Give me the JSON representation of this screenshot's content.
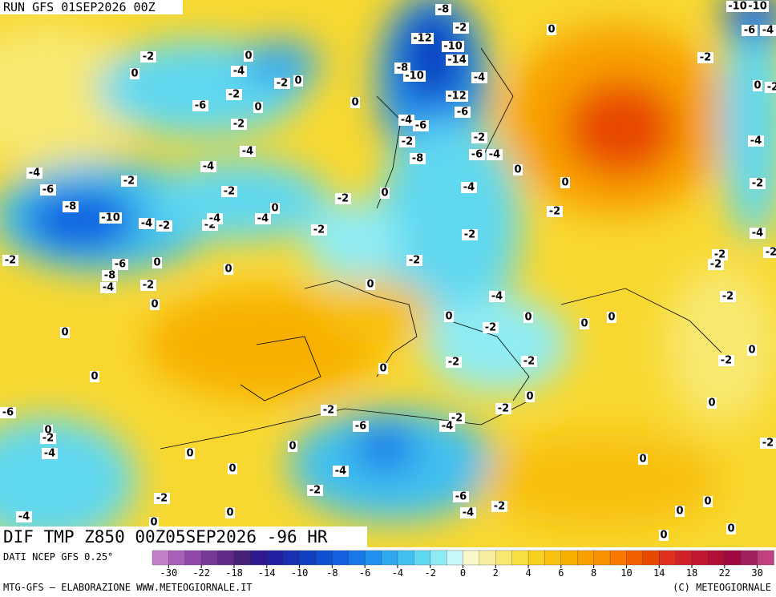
{
  "header": {
    "run": "RUN GFS 01SEP2026 00Z",
    "field": "DIF TMP Z850 00Z05SEP2026 -96 HR"
  },
  "footer": {
    "source": "DATI NCEP GFS 0.25°",
    "credit": "MTG-GFS — ELABORAZIONE WWW.METEOGIORNALE.IT",
    "copyright": "(C) METEOGIORNALE"
  },
  "colorbar": {
    "colors": [
      "#c080c8",
      "#a860b8",
      "#9048a8",
      "#783898",
      "#602888",
      "#482078",
      "#301890",
      "#2020a0",
      "#1830b0",
      "#1040c0",
      "#1050d0",
      "#1060e0",
      "#1878e8",
      "#2090f0",
      "#30a8f0",
      "#40c0f0",
      "#60d8f0",
      "#90ecf4",
      "#c8f8f8",
      "#f8f8c8",
      "#f8f0a0",
      "#f8e870",
      "#f8e040",
      "#f8d020",
      "#f8c010",
      "#f8b000",
      "#f8a000",
      "#f89000",
      "#f87800",
      "#f06000",
      "#e84800",
      "#e03020",
      "#d02028",
      "#c01830",
      "#b01038",
      "#a00840",
      "#a02060",
      "#c04080"
    ],
    "ticks": [
      -30,
      -22,
      -18,
      -14,
      -10,
      -8,
      -6,
      -4,
      -2,
      0,
      2,
      4,
      6,
      8,
      10,
      14,
      18,
      22,
      30
    ]
  },
  "contour_labels": [
    -8,
    -10,
    -10,
    -6,
    -4,
    -2,
    0,
    -12,
    -10,
    -14,
    -8,
    -10,
    -4,
    -2,
    0,
    -4,
    0,
    -2,
    0,
    -12,
    -6,
    -6,
    -2,
    0,
    0,
    -2,
    0,
    -4,
    -6,
    -2,
    -2,
    -2,
    -6,
    -4,
    -4,
    -4,
    -8,
    -4,
    -2,
    -4,
    0,
    0,
    -2,
    -6,
    -2,
    -4,
    -2,
    0,
    -8,
    0,
    -2,
    -10,
    -4,
    -2,
    -2,
    -4,
    -4,
    -2,
    -2,
    -4,
    -2,
    -6,
    0,
    -2,
    -2,
    -2,
    -8,
    0,
    -4,
    -2,
    0,
    -2,
    0,
    -4,
    -2,
    0,
    0,
    0,
    0,
    -2,
    0,
    0,
    -2,
    -2,
    -2,
    0,
    0,
    0,
    0,
    -6,
    -2,
    -2,
    -2,
    -4,
    -6,
    0,
    -2,
    -2,
    0,
    0,
    -4,
    0,
    0,
    -4,
    -2,
    -6,
    -2,
    -2,
    -4,
    0,
    0,
    0,
    -4,
    0,
    0,
    0,
    -2
  ]
}
